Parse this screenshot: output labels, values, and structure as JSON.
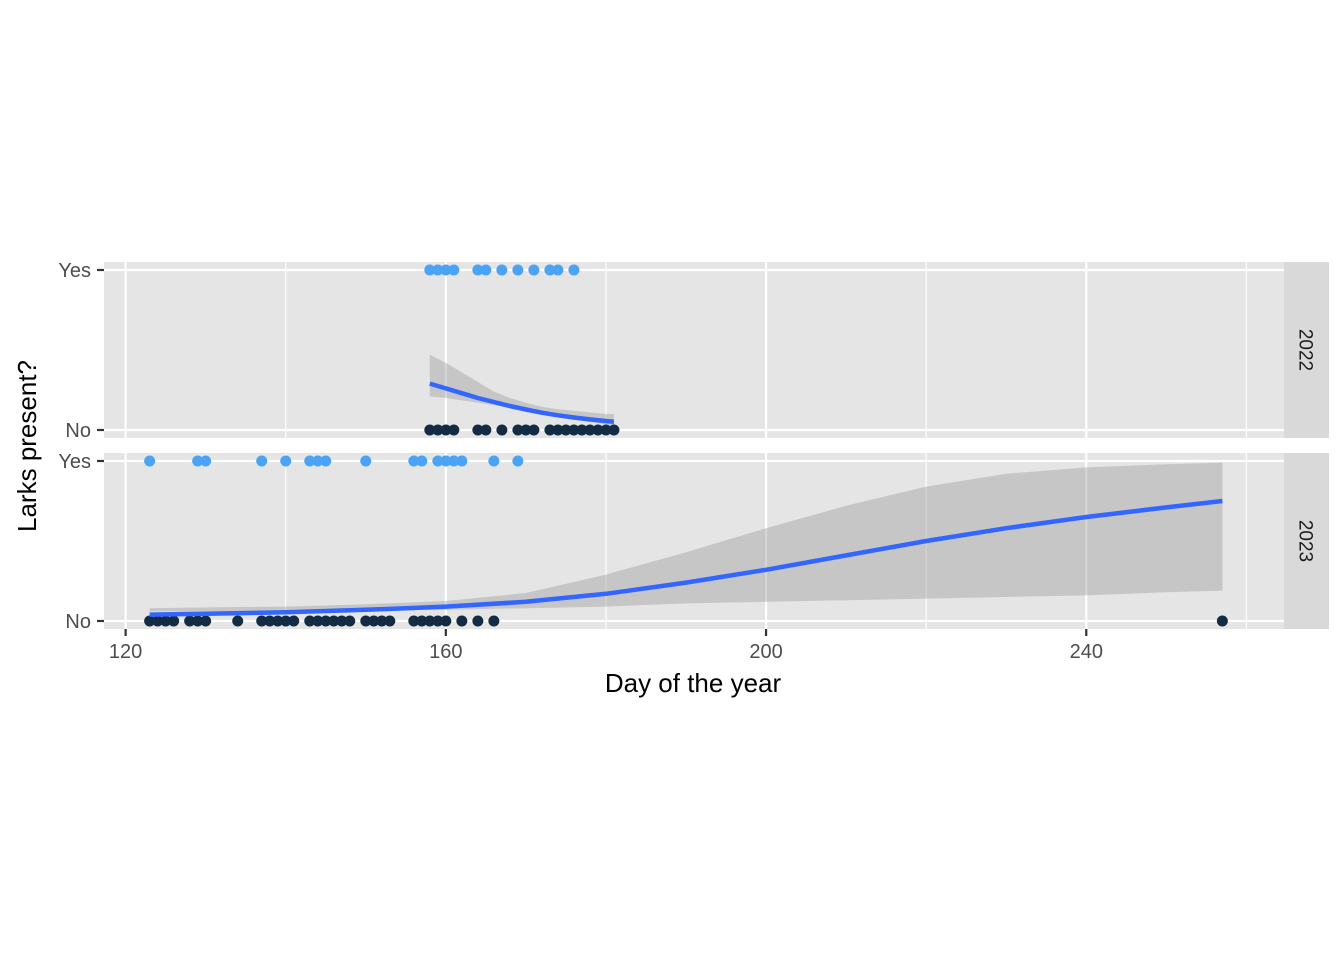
{
  "chart_data": {
    "type": "scatter",
    "xlabel": "Day of the year",
    "ylabel": "Larks present?",
    "xlim": [
      117.3,
      264.7
    ],
    "x_ticks": [
      120,
      160,
      200,
      240
    ],
    "y_categories": [
      "No",
      "Yes"
    ],
    "colors": {
      "yes_points": "#4aa3f5",
      "no_points": "#132b43",
      "fit_line": "#3366ff",
      "ribbon": "#999999",
      "panel": "#e5e5e5",
      "strip": "#d9d9d9"
    },
    "panels": [
      {
        "facet": "2022",
        "yes_days": [
          158,
          159,
          160,
          161,
          164,
          165,
          167,
          169,
          171,
          173,
          174,
          176
        ],
        "no_days": [
          158,
          159,
          160,
          161,
          164,
          165,
          167,
          169,
          170,
          171,
          173,
          174,
          175,
          176,
          177,
          178,
          179,
          180,
          181
        ],
        "fit": {
          "x": [
            158,
            160,
            162,
            164,
            166,
            168,
            170,
            172,
            174,
            176,
            178,
            180,
            181
          ],
          "y": [
            0.29,
            0.26,
            0.23,
            0.2,
            0.175,
            0.15,
            0.128,
            0.108,
            0.092,
            0.078,
            0.066,
            0.056,
            0.051
          ],
          "lower": [
            0.21,
            0.2,
            0.185,
            0.17,
            0.155,
            0.14,
            0.12,
            0.1,
            0.08,
            0.065,
            0.05,
            0.035,
            0.025
          ],
          "upper": [
            0.47,
            0.42,
            0.36,
            0.3,
            0.24,
            0.2,
            0.17,
            0.145,
            0.13,
            0.12,
            0.11,
            0.1,
            0.1
          ]
        }
      },
      {
        "facet": "2023",
        "yes_days": [
          123,
          129,
          130,
          137,
          140,
          143,
          144,
          145,
          150,
          156,
          157,
          159,
          160,
          161,
          162,
          166,
          169
        ],
        "no_days": [
          123,
          124,
          125,
          126,
          128,
          129,
          130,
          134,
          137,
          138,
          139,
          140,
          141,
          143,
          144,
          145,
          146,
          147,
          148,
          150,
          151,
          152,
          153,
          156,
          157,
          158,
          159,
          160,
          162,
          164,
          166,
          257
        ],
        "fit": {
          "x": [
            123,
            130,
            140,
            150,
            160,
            170,
            180,
            190,
            200,
            210,
            220,
            230,
            240,
            250,
            257
          ],
          "y": [
            0.04,
            0.045,
            0.055,
            0.07,
            0.09,
            0.12,
            0.17,
            0.24,
            0.32,
            0.41,
            0.5,
            0.58,
            0.65,
            0.71,
            0.75
          ],
          "lower": [
            0.06,
            0.06,
            0.06,
            0.065,
            0.07,
            0.08,
            0.09,
            0.11,
            0.12,
            0.13,
            0.14,
            0.15,
            0.16,
            0.18,
            0.19
          ],
          "upper": [
            0.08,
            0.085,
            0.09,
            0.105,
            0.125,
            0.175,
            0.29,
            0.43,
            0.58,
            0.72,
            0.84,
            0.92,
            0.96,
            0.98,
            0.99
          ]
        }
      }
    ]
  }
}
